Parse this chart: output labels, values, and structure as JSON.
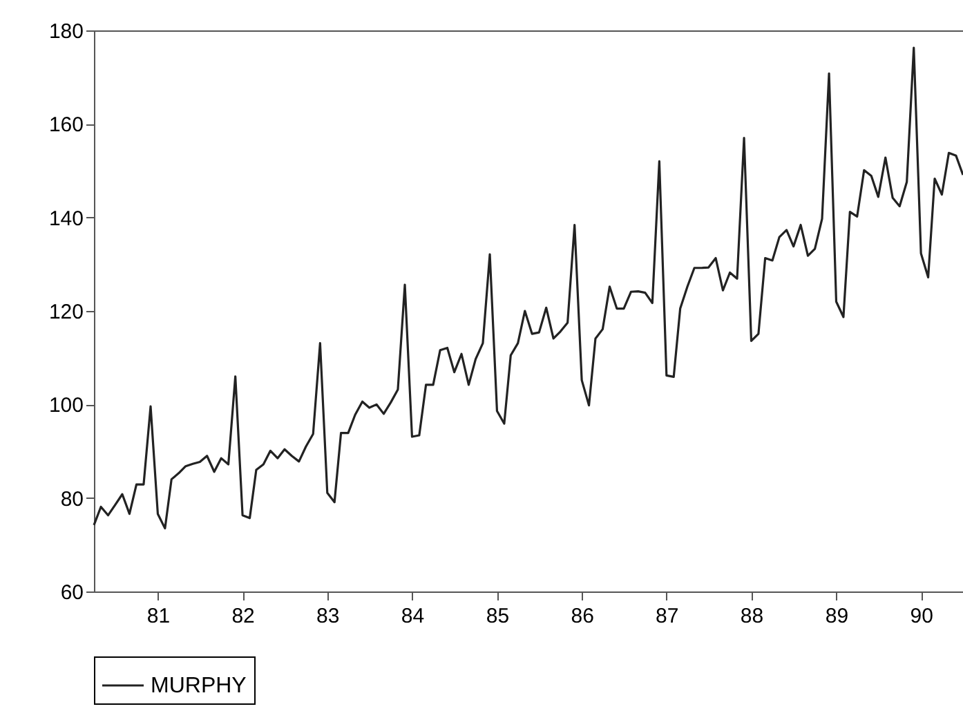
{
  "chart_data": {
    "type": "line",
    "x": [
      "1980-04",
      "1980-05",
      "1980-06",
      "1980-07",
      "1980-08",
      "1980-09",
      "1980-10",
      "1980-11",
      "1980-12",
      "1981-01",
      "1981-02",
      "1981-03",
      "1981-04",
      "1981-05",
      "1981-06",
      "1981-07",
      "1981-08",
      "1981-09",
      "1981-10",
      "1981-11",
      "1981-12",
      "1982-01",
      "1982-02",
      "1982-03",
      "1982-04",
      "1982-05",
      "1982-06",
      "1982-07",
      "1982-08",
      "1982-09",
      "1982-10",
      "1982-11",
      "1982-12",
      "1983-01",
      "1983-02",
      "1983-03",
      "1983-04",
      "1983-05",
      "1983-06",
      "1983-07",
      "1983-08",
      "1983-09",
      "1983-10",
      "1983-11",
      "1983-12",
      "1984-01",
      "1984-02",
      "1984-03",
      "1984-04",
      "1984-05",
      "1984-06",
      "1984-07",
      "1984-08",
      "1984-09",
      "1984-10",
      "1984-11",
      "1984-12",
      "1985-01",
      "1985-02",
      "1985-03",
      "1985-04",
      "1985-05",
      "1985-06",
      "1985-07",
      "1985-08",
      "1985-09",
      "1985-10",
      "1985-11",
      "1985-12",
      "1986-01",
      "1986-02",
      "1986-03",
      "1986-04",
      "1986-05",
      "1986-06",
      "1986-07",
      "1986-08",
      "1986-09",
      "1986-10",
      "1986-11",
      "1986-12",
      "1987-01",
      "1987-02",
      "1987-03",
      "1987-04",
      "1987-05",
      "1987-06",
      "1987-07",
      "1987-08",
      "1987-09",
      "1987-10",
      "1987-11",
      "1987-12",
      "1988-01",
      "1988-02",
      "1988-03",
      "1988-04",
      "1988-05",
      "1988-06",
      "1988-07",
      "1988-08",
      "1988-09",
      "1988-10",
      "1988-11",
      "1988-12",
      "1989-01",
      "1989-02",
      "1989-03",
      "1989-04",
      "1989-05",
      "1989-06",
      "1989-07",
      "1989-08",
      "1989-09",
      "1989-10",
      "1989-11",
      "1989-12",
      "1990-01",
      "1990-02",
      "1990-03",
      "1990-04",
      "1990-05",
      "1990-06",
      "1990-07"
    ],
    "series": [
      {
        "name": "MURPHY",
        "color": "#222222",
        "values": [
          74.2,
          78.1,
          76.3,
          78.5,
          80.8,
          76.6,
          82.9,
          82.9,
          99.6,
          76.6,
          73.5,
          84.0,
          85.3,
          86.8,
          87.3,
          87.7,
          89.0,
          85.6,
          88.5,
          87.2,
          106.0,
          76.3,
          75.7,
          86.0,
          87.2,
          90.1,
          88.5,
          90.4,
          89.0,
          87.8,
          91.0,
          93.7,
          113.1,
          81.1,
          79.1,
          93.9,
          93.9,
          97.8,
          100.6,
          99.3,
          100.0,
          98.0,
          100.4,
          103.2,
          125.6,
          93.1,
          93.4,
          104.2,
          104.2,
          111.6,
          112.1,
          106.9,
          110.8,
          104.2,
          109.7,
          113.1,
          132.1,
          98.6,
          95.9,
          110.5,
          113.1,
          120.0,
          115.1,
          115.4,
          120.7,
          114.1,
          115.6,
          117.5,
          138.4,
          105.2,
          99.8,
          114.1,
          116.1,
          125.2,
          120.5,
          120.5,
          124.1,
          124.2,
          123.9,
          121.7,
          152.0,
          106.2,
          105.9,
          120.5,
          125.2,
          129.2,
          129.2,
          129.3,
          131.3,
          124.4,
          128.2,
          126.9,
          157.0,
          113.6,
          115.1,
          131.3,
          130.8,
          135.8,
          137.3,
          133.8,
          138.4,
          131.8,
          133.3,
          139.7,
          170.8,
          122.0,
          118.7,
          141.2,
          140.2,
          150.1,
          148.9,
          144.4,
          152.8,
          144.2,
          142.4,
          147.6,
          176.3,
          132.3,
          127.2,
          148.3,
          144.9,
          153.8,
          153.2,
          149.1
        ]
      }
    ],
    "xlim": [
      "1980-04",
      "1990-07"
    ],
    "xticks": [
      {
        "value": "1981",
        "label": "81"
      },
      {
        "value": "1982",
        "label": "82"
      },
      {
        "value": "1983",
        "label": "83"
      },
      {
        "value": "1984",
        "label": "84"
      },
      {
        "value": "1985",
        "label": "85"
      },
      {
        "value": "1986",
        "label": "86"
      },
      {
        "value": "1987",
        "label": "87"
      },
      {
        "value": "1988",
        "label": "88"
      },
      {
        "value": "1989",
        "label": "89"
      },
      {
        "value": "1990",
        "label": "90"
      }
    ],
    "ylim": [
      60,
      180
    ],
    "yticks": [
      60,
      80,
      100,
      120,
      140,
      160,
      180
    ],
    "grid": false,
    "legend": "bottom",
    "line_style": "solid",
    "marker": "none"
  }
}
